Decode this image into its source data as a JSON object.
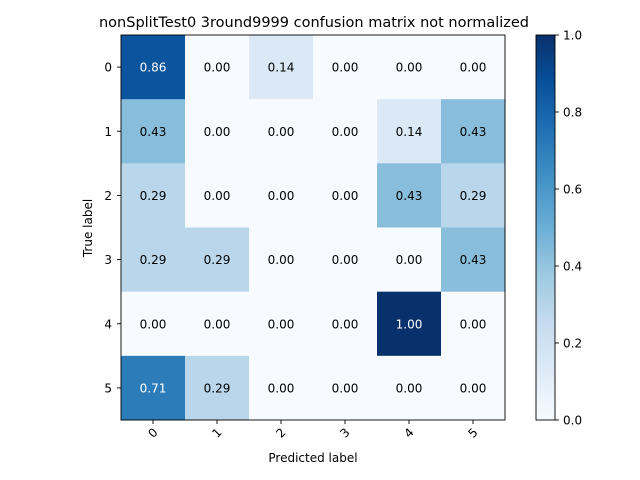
{
  "chart_data": {
    "type": "heatmap",
    "title": "nonSplitTest0 3round9999 confusion matrix not normalized",
    "xlabel": "Predicted label",
    "ylabel": "True label",
    "x_tick_labels": [
      "0",
      "1",
      "2",
      "3",
      "4",
      "5"
    ],
    "y_tick_labels": [
      "0",
      "1",
      "2",
      "3",
      "4",
      "5"
    ],
    "values": [
      [
        0.86,
        0.0,
        0.14,
        0.0,
        0.0,
        0.0
      ],
      [
        0.43,
        0.0,
        0.0,
        0.0,
        0.14,
        0.43
      ],
      [
        0.29,
        0.0,
        0.0,
        0.0,
        0.43,
        0.29
      ],
      [
        0.29,
        0.29,
        0.0,
        0.0,
        0.0,
        0.43
      ],
      [
        0.0,
        0.0,
        0.0,
        0.0,
        1.0,
        0.0
      ],
      [
        0.71,
        0.29,
        0.0,
        0.0,
        0.0,
        0.0
      ]
    ],
    "cell_labels": [
      [
        "0.86",
        "0.00",
        "0.14",
        "0.00",
        "0.00",
        "0.00"
      ],
      [
        "0.43",
        "0.00",
        "0.00",
        "0.00",
        "0.14",
        "0.43"
      ],
      [
        "0.29",
        "0.00",
        "0.00",
        "0.00",
        "0.43",
        "0.29"
      ],
      [
        "0.29",
        "0.29",
        "0.00",
        "0.00",
        "0.00",
        "0.43"
      ],
      [
        "0.00",
        "0.00",
        "0.00",
        "0.00",
        "1.00",
        "0.00"
      ],
      [
        "0.71",
        "0.29",
        "0.00",
        "0.00",
        "0.00",
        "0.00"
      ]
    ],
    "colorbar": {
      "min": 0.0,
      "max": 1.0,
      "ticks": [
        0.0,
        0.2,
        0.4,
        0.6,
        0.8,
        1.0
      ],
      "tick_labels": [
        "0.0",
        "0.2",
        "0.4",
        "0.6",
        "0.8",
        "1.0"
      ],
      "colormap": [
        "#f7fbff",
        "#deebf7",
        "#c6dbef",
        "#9ecae1",
        "#6baed6",
        "#4292c6",
        "#2171b5",
        "#08519c",
        "#08306b"
      ]
    },
    "text_colors": {
      "dark_text": "#000000",
      "light_text": "#ffffff"
    },
    "light_text_threshold": 0.5,
    "grid": false,
    "x_tick_rotation_deg": 45
  }
}
